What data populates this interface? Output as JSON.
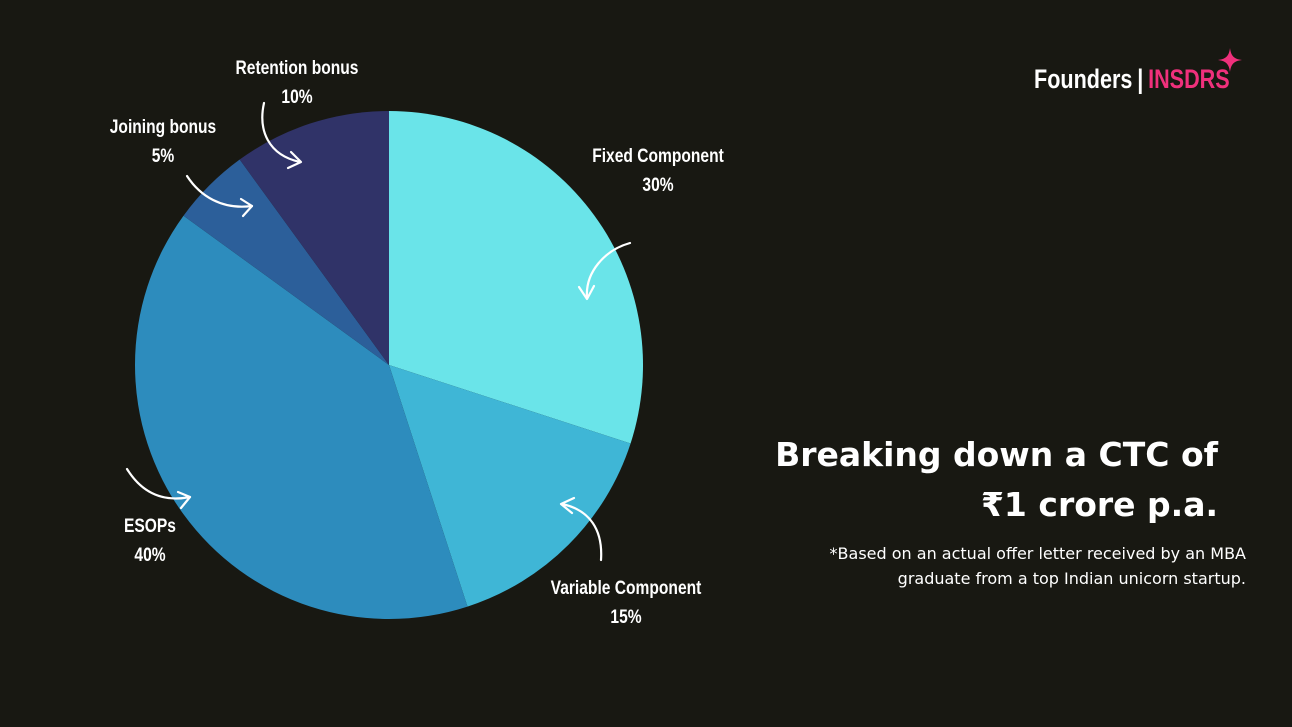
{
  "chart_data": {
    "type": "pie",
    "slices": [
      {
        "label": "Fixed Component",
        "value": 30,
        "value_label": "30%",
        "color": "#6ae4e9"
      },
      {
        "label": "Variable Component",
        "value": 15,
        "value_label": "15%",
        "color": "#3fb6d6"
      },
      {
        "label": "ESOPs",
        "value": 40,
        "value_label": "40%",
        "color": "#2d8cbd"
      },
      {
        "label": "Joining bonus",
        "value": 5,
        "value_label": "5%",
        "color": "#2c5f9a"
      },
      {
        "label": "Retention bonus",
        "value": 10,
        "value_label": "10%",
        "color": "#303368"
      }
    ]
  },
  "brand": {
    "name": "Founders",
    "separator": "|",
    "accent": "INSDRS",
    "accent_color": "#f0307c"
  },
  "headline": {
    "line1": "Breaking down a CTC of",
    "line2": "₹1 crore p.a."
  },
  "footnote": {
    "line1": "*Based on an actual offer letter received by an MBA",
    "line2": "graduate from a top Indian unicorn startup."
  }
}
